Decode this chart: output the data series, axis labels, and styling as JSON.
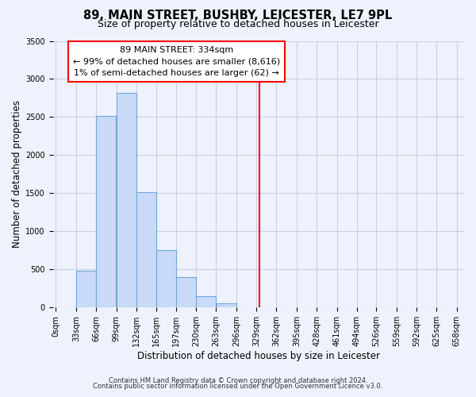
{
  "title": "89, MAIN STREET, BUSHBY, LEICESTER, LE7 9PL",
  "subtitle": "Size of property relative to detached houses in Leicester",
  "xlabel": "Distribution of detached houses by size in Leicester",
  "ylabel": "Number of detached properties",
  "footnote1": "Contains HM Land Registry data © Crown copyright and database right 2024.",
  "footnote2": "Contains public sector information licensed under the Open Government Licence v3.0.",
  "bar_left_edges": [
    0,
    33,
    66,
    99,
    132,
    165,
    197,
    230,
    263,
    296,
    329,
    362,
    395,
    428,
    461,
    494,
    526,
    559,
    592,
    625
  ],
  "bar_widths": [
    33,
    33,
    33,
    33,
    33,
    32,
    33,
    33,
    33,
    33,
    33,
    33,
    33,
    33,
    33,
    32,
    33,
    33,
    33,
    33
  ],
  "bar_heights": [
    0,
    480,
    2510,
    2820,
    1510,
    750,
    400,
    145,
    60,
    0,
    0,
    0,
    0,
    0,
    0,
    0,
    0,
    0,
    0,
    0
  ],
  "tick_labels": [
    "0sqm",
    "33sqm",
    "66sqm",
    "99sqm",
    "132sqm",
    "165sqm",
    "197sqm",
    "230sqm",
    "263sqm",
    "296sqm",
    "329sqm",
    "362sqm",
    "395sqm",
    "428sqm",
    "461sqm",
    "494sqm",
    "526sqm",
    "559sqm",
    "592sqm",
    "625sqm",
    "658sqm"
  ],
  "tick_positions": [
    0,
    33,
    66,
    99,
    132,
    165,
    197,
    230,
    263,
    296,
    329,
    362,
    395,
    428,
    461,
    494,
    526,
    559,
    592,
    625,
    658
  ],
  "ylim": [
    0,
    3500
  ],
  "yticks": [
    0,
    500,
    1000,
    1500,
    2000,
    2500,
    3000,
    3500
  ],
  "bar_color": "#c9daf8",
  "bar_edge_color": "#6fa8dc",
  "grid_color": "#c8d0e8",
  "bg_color": "#eef2fc",
  "vline_x": 334,
  "vline_color": "red",
  "annotation_line1": "89 MAIN STREET: 334sqm",
  "annotation_line2": "← 99% of detached houses are smaller (8,616)",
  "annotation_line3": "1% of semi-detached houses are larger (62) →",
  "annotation_box_color": "white",
  "annotation_box_edge": "red",
  "title_fontsize": 10.5,
  "subtitle_fontsize": 9,
  "axis_label_fontsize": 8.5,
  "tick_fontsize": 7,
  "annotation_fontsize": 8,
  "footnote_fontsize": 6
}
